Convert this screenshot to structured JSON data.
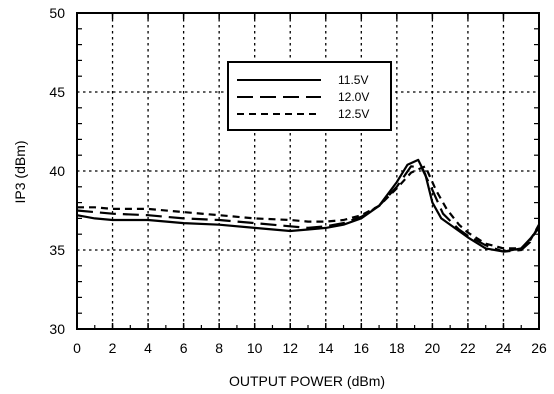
{
  "chart_data": {
    "type": "line",
    "title": "",
    "xlabel": "OUTPUT POWER  (dBm)",
    "ylabel": "IP3 (dBm)",
    "xlim": [
      0,
      26
    ],
    "ylim": [
      30,
      50
    ],
    "xticks": [
      0,
      2,
      4,
      6,
      8,
      10,
      12,
      14,
      16,
      18,
      20,
      22,
      24,
      26
    ],
    "yticks": [
      30,
      35,
      40,
      45,
      50
    ],
    "grid": true,
    "legend_position": "top-center",
    "series": [
      {
        "name": "11.5V",
        "style": "solid",
        "points": [
          [
            0,
            37.2
          ],
          [
            1,
            37.0
          ],
          [
            2,
            36.9
          ],
          [
            4,
            36.9
          ],
          [
            6,
            36.7
          ],
          [
            8,
            36.6
          ],
          [
            10,
            36.4
          ],
          [
            12,
            36.2
          ],
          [
            13,
            36.3
          ],
          [
            14,
            36.4
          ],
          [
            15,
            36.6
          ],
          [
            16,
            37.0
          ],
          [
            17,
            37.8
          ],
          [
            18,
            39.3
          ],
          [
            18.6,
            40.4
          ],
          [
            19.2,
            40.7
          ],
          [
            19.6,
            39.8
          ],
          [
            20,
            38.0
          ],
          [
            20.5,
            37.0
          ],
          [
            21.5,
            36.2
          ],
          [
            22,
            35.8
          ],
          [
            23,
            35.1
          ],
          [
            24,
            34.9
          ],
          [
            25,
            35.1
          ],
          [
            25.5,
            35.7
          ],
          [
            26,
            36.4
          ]
        ]
      },
      {
        "name": "12.0V",
        "style": "long-dash",
        "points": [
          [
            0,
            37.5
          ],
          [
            1,
            37.4
          ],
          [
            2,
            37.3
          ],
          [
            4,
            37.2
          ],
          [
            6,
            37.0
          ],
          [
            8,
            36.9
          ],
          [
            10,
            36.7
          ],
          [
            12,
            36.5
          ],
          [
            13,
            36.4
          ],
          [
            14,
            36.5
          ],
          [
            15,
            36.7
          ],
          [
            16,
            37.1
          ],
          [
            17,
            37.8
          ],
          [
            18,
            39.0
          ],
          [
            18.8,
            40.3
          ],
          [
            19.4,
            40.2
          ],
          [
            20,
            38.8
          ],
          [
            20.6,
            37.3
          ],
          [
            21.5,
            36.3
          ],
          [
            22,
            35.9
          ],
          [
            23,
            35.3
          ],
          [
            24,
            34.9
          ],
          [
            25,
            35.0
          ],
          [
            25.5,
            35.5
          ],
          [
            26,
            36.6
          ]
        ]
      },
      {
        "name": "12.5V",
        "style": "short-dash",
        "points": [
          [
            0,
            37.7
          ],
          [
            1,
            37.7
          ],
          [
            2,
            37.6
          ],
          [
            4,
            37.6
          ],
          [
            6,
            37.4
          ],
          [
            8,
            37.2
          ],
          [
            10,
            37.0
          ],
          [
            12,
            36.9
          ],
          [
            13,
            36.8
          ],
          [
            14,
            36.8
          ],
          [
            15,
            36.9
          ],
          [
            16,
            37.2
          ],
          [
            17,
            37.8
          ],
          [
            18,
            38.9
          ],
          [
            18.8,
            39.9
          ],
          [
            19.6,
            40.3
          ],
          [
            20.2,
            38.8
          ],
          [
            20.8,
            37.6
          ],
          [
            21.5,
            36.6
          ],
          [
            22,
            36.1
          ],
          [
            23,
            35.4
          ],
          [
            24,
            35.1
          ],
          [
            25,
            35.1
          ],
          [
            25.5,
            35.6
          ],
          [
            26,
            36.6
          ]
        ]
      }
    ]
  }
}
